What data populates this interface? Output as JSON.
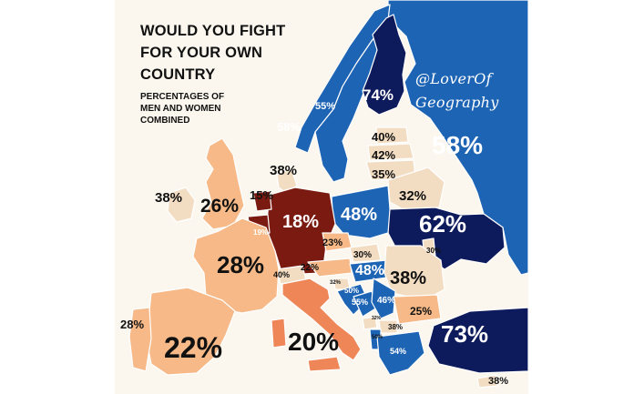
{
  "title": {
    "lines": [
      "WOULD YOU FIGHT",
      "FOR YOUR OWN",
      "COUNTRY"
    ]
  },
  "subtitle": {
    "lines": [
      "PERCENTAGES OF",
      "MEN AND WOMEN",
      "COMBINED"
    ]
  },
  "watermark": {
    "lines": [
      "@LoverOf",
      "Geography"
    ]
  },
  "colors": {
    "sea": "#fbf7ee",
    "dark_navy": "#0d1b5c",
    "blue": "#1d64b5",
    "light_peach": "#f2dcc2",
    "peach": "#f6b987",
    "orange": "#ef8658",
    "dark_red": "#7a1a10",
    "border": "#ffffff"
  },
  "regions": [
    {
      "country": "Finland",
      "value": "74%",
      "color": "dark_navy"
    },
    {
      "country": "Sweden",
      "value": "55%",
      "color": "blue"
    },
    {
      "country": "Norway",
      "value": "58%",
      "color": "blue"
    },
    {
      "country": "Russia",
      "value": "58%",
      "color": "blue"
    },
    {
      "country": "Estonia",
      "value": "40%",
      "color": "light_peach"
    },
    {
      "country": "Latvia",
      "value": "42%",
      "color": "light_peach"
    },
    {
      "country": "Lithuania",
      "value": "35%",
      "color": "light_peach"
    },
    {
      "country": "Belarus",
      "value": "32%",
      "color": "light_peach"
    },
    {
      "country": "Ukraine",
      "value": "62%",
      "color": "dark_navy"
    },
    {
      "country": "Moldova",
      "value": "30%",
      "color": "light_peach"
    },
    {
      "country": "Denmark",
      "value": "38%",
      "color": "light_peach"
    },
    {
      "country": "Poland",
      "value": "48%",
      "color": "blue"
    },
    {
      "country": "Germany",
      "value": "18%",
      "color": "dark_red"
    },
    {
      "country": "Netherlands",
      "value": "15%",
      "color": "dark_red"
    },
    {
      "country": "Belgium",
      "value": "19%",
      "color": "dark_red"
    },
    {
      "country": "Ireland",
      "value": "38%",
      "color": "light_peach"
    },
    {
      "country": "United Kingdom",
      "value": "26%",
      "color": "peach"
    },
    {
      "country": "France",
      "value": "28%",
      "color": "peach"
    },
    {
      "country": "Switzerland",
      "value": "40%",
      "color": "light_peach"
    },
    {
      "country": "Czech Republic",
      "value": "23%",
      "color": "peach"
    },
    {
      "country": "Austria",
      "value": "22%",
      "color": "peach"
    },
    {
      "country": "Slovakia",
      "value": "30%",
      "color": "light_peach"
    },
    {
      "country": "Hungary",
      "value": "48%",
      "color": "blue"
    },
    {
      "country": "Slovenia",
      "value": "32%",
      "color": "light_peach"
    },
    {
      "country": "Croatia",
      "value": "50%",
      "color": "blue"
    },
    {
      "country": "Bosnia and Herzegovina",
      "value": "55%",
      "color": "blue"
    },
    {
      "country": "Serbia",
      "value": "46%",
      "color": "blue"
    },
    {
      "country": "Romania",
      "value": "38%",
      "color": "light_peach"
    },
    {
      "country": "Bulgaria",
      "value": "25%",
      "color": "peach"
    },
    {
      "country": "Montenegro",
      "value": "32%",
      "color": "light_peach"
    },
    {
      "country": "North Macedonia",
      "value": "38%",
      "color": "light_peach"
    },
    {
      "country": "Albania",
      "value": "50%",
      "color": "blue"
    },
    {
      "country": "Greece",
      "value": "54%",
      "color": "blue"
    },
    {
      "country": "Turkey",
      "value": "73%",
      "color": "dark_navy"
    },
    {
      "country": "Cyprus",
      "value": "38%",
      "color": "light_peach"
    },
    {
      "country": "Spain",
      "value": "22%",
      "color": "peach"
    },
    {
      "country": "Portugal",
      "value": "28%",
      "color": "peach"
    },
    {
      "country": "Italy",
      "value": "20%",
      "color": "orange"
    }
  ]
}
